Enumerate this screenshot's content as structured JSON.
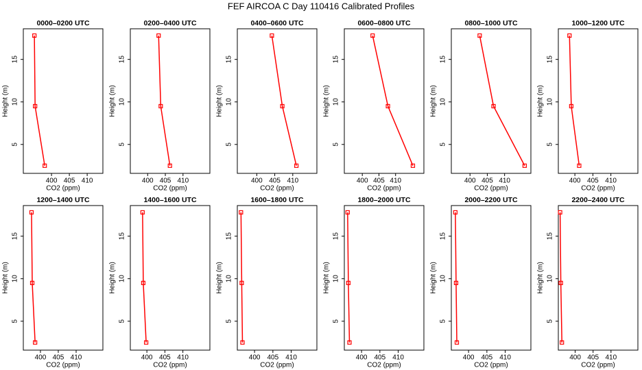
{
  "page_title": "FEF AIRCOA C  Day 110416  Calibrated Profiles",
  "chart_data": [
    {
      "type": "line",
      "title": "0000–0200 UTC",
      "xlabel": "CO2 (ppm)",
      "ylabel": "Height (m)",
      "color": "#ff0000",
      "x": [
        395.2,
        395.4,
        398.1
      ],
      "values": [
        17.8,
        9.5,
        2.5
      ],
      "xlim": [
        392.1,
        414.4
      ],
      "ylim": [
        1.6,
        18.6
      ],
      "xticks": [
        400,
        405,
        410
      ],
      "yticks": [
        5,
        10,
        15
      ]
    },
    {
      "type": "line",
      "title": "0200–0400 UTC",
      "xlabel": "CO2 (ppm)",
      "ylabel": "Height (m)",
      "color": "#ff0000",
      "x": [
        403.1,
        403.7,
        406.3
      ],
      "values": [
        17.8,
        9.5,
        2.5
      ],
      "xlim": [
        395.1,
        417.6
      ],
      "ylim": [
        1.6,
        18.6
      ],
      "xticks": [
        400,
        405,
        410
      ],
      "yticks": [
        5,
        10,
        15
      ]
    },
    {
      "type": "line",
      "title": "0400–0600 UTC",
      "xlabel": "CO2 (ppm)",
      "ylabel": "Height (m)",
      "color": "#ff0000",
      "x": [
        404.2,
        407.1,
        411.0
      ],
      "values": [
        17.8,
        9.5,
        2.5
      ],
      "xlim": [
        394.6,
        416.7
      ],
      "ylim": [
        1.6,
        18.6
      ],
      "xticks": [
        400,
        405,
        410
      ],
      "yticks": [
        5,
        10,
        15
      ]
    },
    {
      "type": "line",
      "title": "0600–0800 UTC",
      "xlabel": "CO2 (ppm)",
      "ylabel": "Height (m)",
      "color": "#ff0000",
      "x": [
        403.1,
        407.7,
        415.2
      ],
      "values": [
        17.8,
        9.5,
        2.5
      ],
      "xlim": [
        394.6,
        418.5
      ],
      "ylim": [
        1.6,
        18.6
      ],
      "xticks": [
        400,
        405,
        410
      ],
      "yticks": [
        5,
        10,
        15
      ]
    },
    {
      "type": "line",
      "title": "0800–1000 UTC",
      "xlabel": "CO2 (ppm)",
      "ylabel": "Height (m)",
      "color": "#ff0000",
      "x": [
        402.8,
        406.8,
        415.8
      ],
      "values": [
        17.8,
        9.5,
        2.5
      ],
      "xlim": [
        394.6,
        417.6
      ],
      "ylim": [
        1.6,
        18.6
      ],
      "xticks": [
        400,
        405,
        410
      ],
      "yticks": [
        5,
        10,
        15
      ]
    },
    {
      "type": "line",
      "title": "1000–1200 UTC",
      "xlabel": "CO2 (ppm)",
      "ylabel": "Height (m)",
      "color": "#ff0000",
      "x": [
        398.5,
        399.0,
        401.2
      ],
      "values": [
        17.8,
        9.5,
        2.5
      ],
      "xlim": [
        395.4,
        417.5
      ],
      "ylim": [
        1.6,
        18.6
      ],
      "xticks": [
        400,
        405,
        410
      ],
      "yticks": [
        5,
        10,
        15
      ]
    },
    {
      "type": "line",
      "title": "1200–1400 UTC",
      "xlabel": "CO2 (ppm)",
      "ylabel": "Height (m)",
      "color": "#ff0000",
      "x": [
        397.5,
        397.7,
        398.5
      ],
      "values": [
        17.8,
        9.5,
        2.5
      ],
      "xlim": [
        395.2,
        417.5
      ],
      "ylim": [
        1.6,
        18.6
      ],
      "xticks": [
        400,
        405,
        410
      ],
      "yticks": [
        5,
        10,
        15
      ]
    },
    {
      "type": "line",
      "title": "1400–1600 UTC",
      "xlabel": "CO2 (ppm)",
      "ylabel": "Height (m)",
      "color": "#ff0000",
      "x": [
        398.8,
        399.0,
        399.8
      ],
      "values": [
        17.8,
        9.5,
        2.5
      ],
      "xlim": [
        395.4,
        417.5
      ],
      "ylim": [
        1.6,
        18.6
      ],
      "xticks": [
        400,
        405,
        410
      ],
      "yticks": [
        5,
        10,
        15
      ]
    },
    {
      "type": "line",
      "title": "1600–1800 UTC",
      "xlabel": "CO2 (ppm)",
      "ylabel": "Height (m)",
      "color": "#ff0000",
      "x": [
        396.3,
        396.5,
        396.7
      ],
      "values": [
        17.8,
        9.5,
        2.5
      ],
      "xlim": [
        395.3,
        417.0
      ],
      "ylim": [
        1.6,
        18.6
      ],
      "xticks": [
        400,
        405,
        410
      ],
      "yticks": [
        5,
        10,
        15
      ]
    },
    {
      "type": "line",
      "title": "1800–2000 UTC",
      "xlabel": "CO2 (ppm)",
      "ylabel": "Height (m)",
      "color": "#ff0000",
      "x": [
        396.2,
        396.4,
        396.7
      ],
      "values": [
        17.8,
        9.5,
        2.5
      ],
      "xlim": [
        395.3,
        417.0
      ],
      "ylim": [
        1.6,
        18.6
      ],
      "xticks": [
        400,
        405,
        410
      ],
      "yticks": [
        5,
        10,
        15
      ]
    },
    {
      "type": "line",
      "title": "2000–2200 UTC",
      "xlabel": "CO2 (ppm)",
      "ylabel": "Height (m)",
      "color": "#ff0000",
      "x": [
        396.4,
        396.6,
        396.8
      ],
      "values": [
        17.8,
        9.5,
        2.5
      ],
      "xlim": [
        395.3,
        417.0
      ],
      "ylim": [
        1.6,
        18.6
      ],
      "xticks": [
        400,
        405,
        410
      ],
      "yticks": [
        5,
        10,
        15
      ]
    },
    {
      "type": "line",
      "title": "2200–2400 UTC",
      "xlabel": "CO2 (ppm)",
      "ylabel": "Height (m)",
      "color": "#ff0000",
      "x": [
        395.8,
        396.0,
        396.3
      ],
      "values": [
        17.8,
        9.5,
        2.5
      ],
      "xlim": [
        395.3,
        417.5
      ],
      "ylim": [
        1.6,
        18.6
      ],
      "xticks": [
        400,
        405,
        410
      ],
      "yticks": [
        5,
        10,
        15
      ]
    }
  ]
}
